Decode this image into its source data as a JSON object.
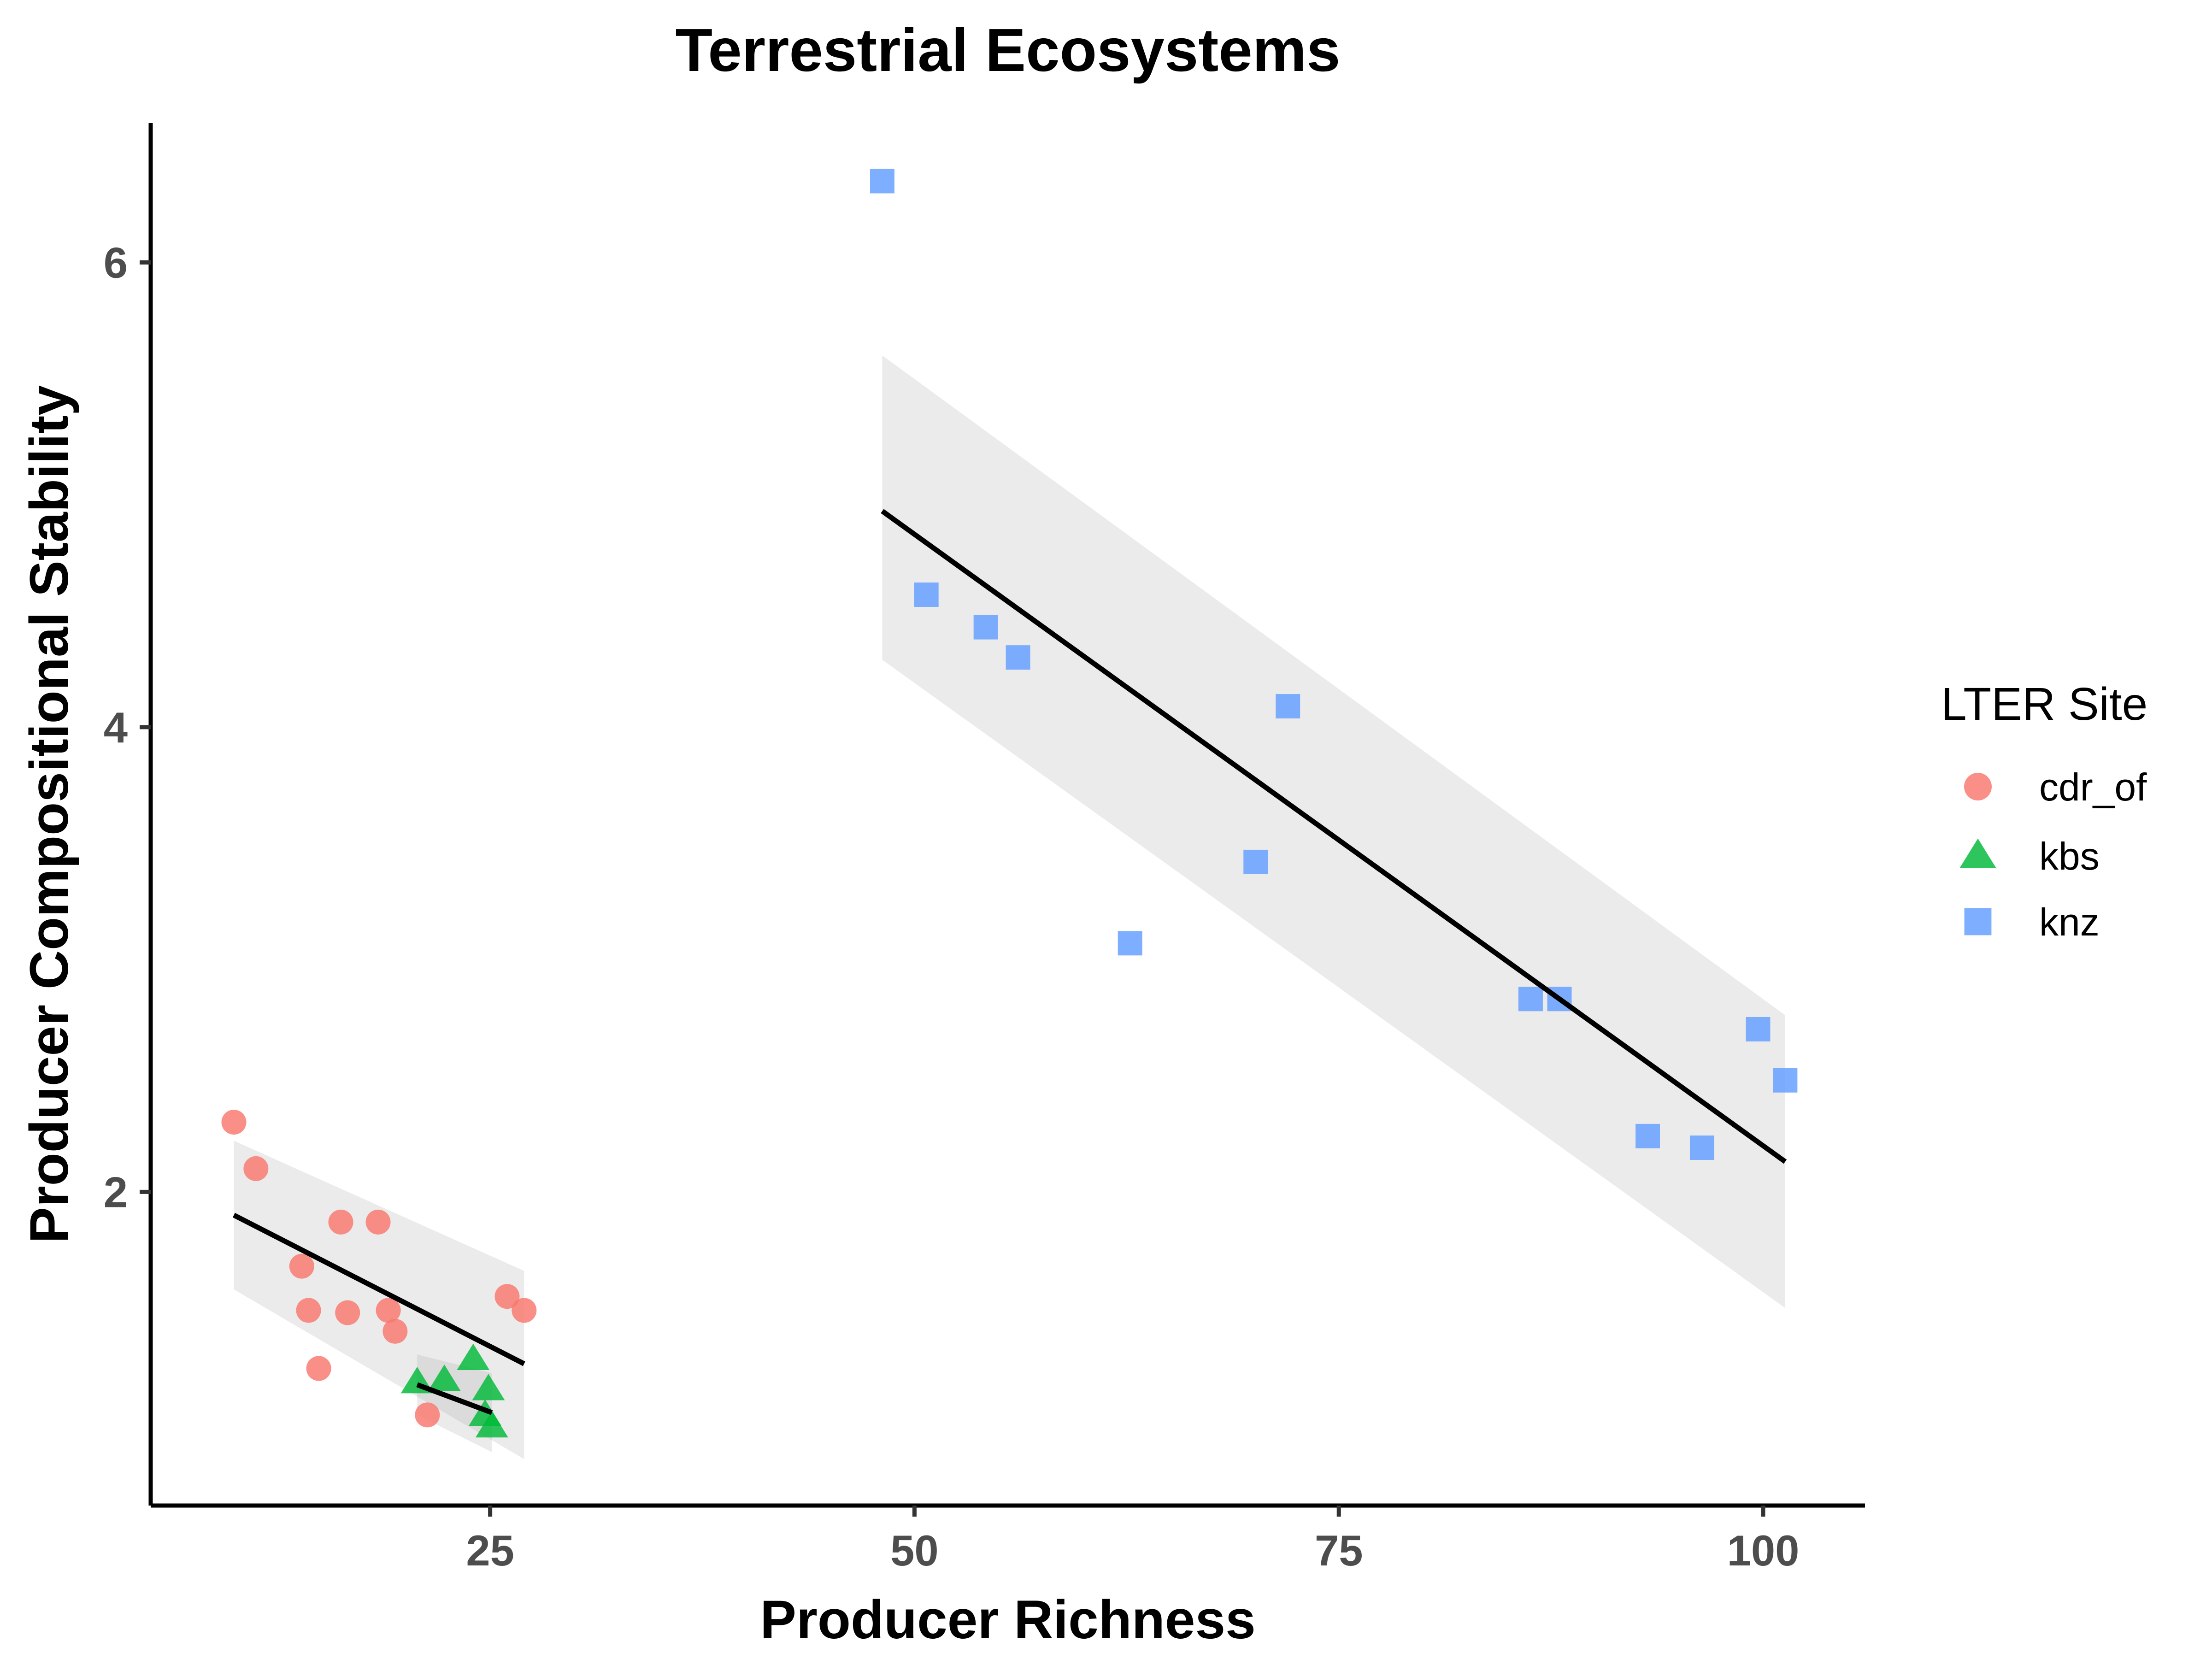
{
  "chart_data": {
    "type": "scatter",
    "title": "Terrestrial Ecosystems",
    "xlabel": "Producer Richness",
    "ylabel": "Producer Compositional Stability",
    "xlim": [
      5,
      106
    ],
    "ylim": [
      0.65,
      6.6
    ],
    "xticks": [
      25,
      50,
      75,
      100
    ],
    "yticks": [
      2,
      4,
      6
    ],
    "grid": false,
    "legend": {
      "title": "LTER Site",
      "position": "right"
    },
    "series": [
      {
        "name": "cdr_of",
        "color": "#F8766D",
        "shape": "circle",
        "points": [
          [
            9.9,
            2.3
          ],
          [
            11.2,
            2.1
          ],
          [
            13.9,
            1.68
          ],
          [
            14.3,
            1.49
          ],
          [
            14.9,
            1.24
          ],
          [
            16.2,
            1.87
          ],
          [
            16.6,
            1.48
          ],
          [
            18.4,
            1.87
          ],
          [
            19.0,
            1.49
          ],
          [
            19.4,
            1.4
          ],
          [
            21.3,
            1.04
          ],
          [
            26.0,
            1.55
          ],
          [
            27.0,
            1.49
          ]
        ],
        "fit": {
          "x": [
            9.9,
            27.0
          ],
          "y": [
            1.9,
            1.26
          ],
          "ci_upper": [
            2.22,
            1.66
          ],
          "ci_lower": [
            1.58,
            0.85
          ]
        }
      },
      {
        "name": "kbs",
        "color": "#00BA38",
        "shape": "triangle",
        "points": [
          [
            20.7,
            1.18
          ],
          [
            22.3,
            1.19
          ],
          [
            24.0,
            1.28
          ],
          [
            24.7,
            1.04
          ],
          [
            24.9,
            1.15
          ],
          [
            25.1,
            0.99
          ]
        ],
        "fit": {
          "x": [
            20.7,
            25.1
          ],
          "y": [
            1.17,
            1.05
          ],
          "ci_upper": [
            1.3,
            1.22
          ],
          "ci_lower": [
            1.04,
            0.88
          ]
        }
      },
      {
        "name": "knz",
        "color": "#619CFF",
        "shape": "square",
        "points": [
          [
            48.1,
            6.35
          ],
          [
            50.7,
            4.57
          ],
          [
            54.2,
            4.43
          ],
          [
            56.1,
            4.3
          ],
          [
            62.7,
            3.07
          ],
          [
            70.1,
            3.42
          ],
          [
            72.0,
            4.09
          ],
          [
            86.3,
            2.83
          ],
          [
            88.0,
            2.83
          ],
          [
            93.2,
            2.24
          ],
          [
            96.4,
            2.19
          ],
          [
            99.7,
            2.7
          ],
          [
            101.3,
            2.48
          ]
        ],
        "fit": {
          "x": [
            48.1,
            101.3
          ],
          "y": [
            4.93,
            2.13
          ],
          "ci_upper": [
            5.6,
            2.76
          ],
          "ci_lower": [
            4.29,
            1.5
          ]
        }
      }
    ]
  }
}
